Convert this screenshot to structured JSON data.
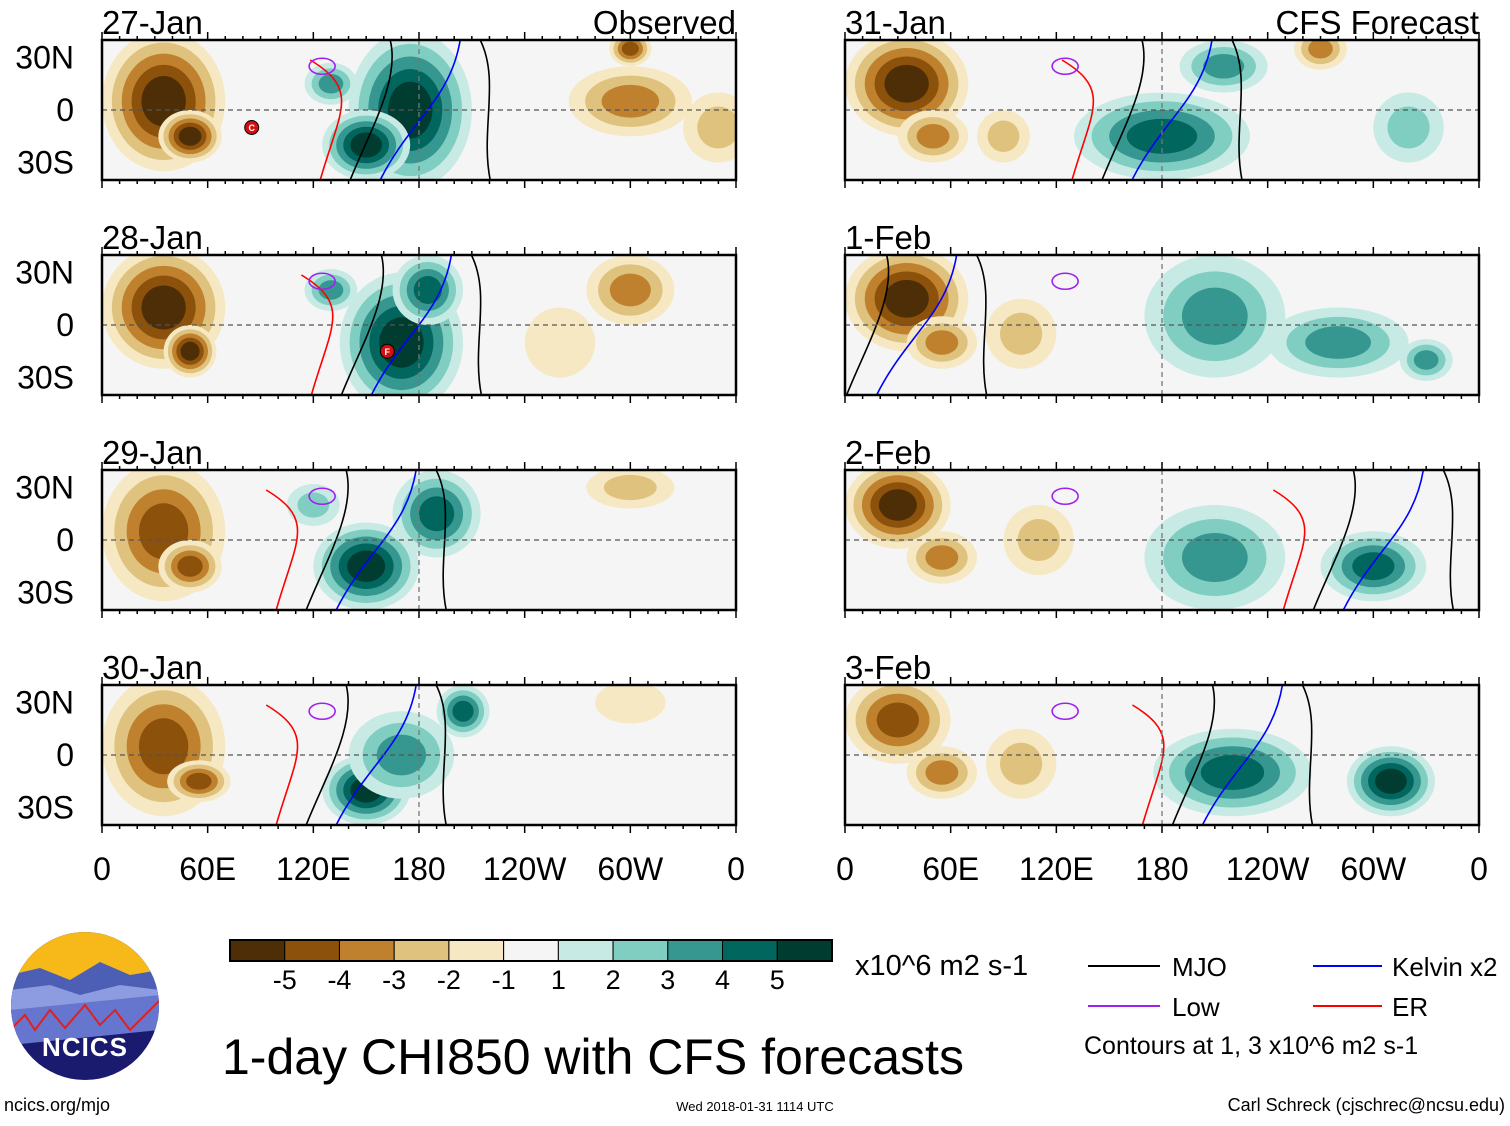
{
  "panels": [
    {
      "date": "27-Jan",
      "tag": "Observed",
      "col": 0,
      "row": 0,
      "type": "observed"
    },
    {
      "date": "28-Jan",
      "tag": "",
      "col": 0,
      "row": 1,
      "type": "observed"
    },
    {
      "date": "29-Jan",
      "tag": "",
      "col": 0,
      "row": 2,
      "type": "observed"
    },
    {
      "date": "30-Jan",
      "tag": "",
      "col": 0,
      "row": 3,
      "type": "observed"
    },
    {
      "date": "31-Jan",
      "tag": "CFS Forecast",
      "col": 1,
      "row": 0,
      "type": "forecast"
    },
    {
      "date": "1-Feb",
      "tag": "",
      "col": 1,
      "row": 1,
      "type": "forecast"
    },
    {
      "date": "2-Feb",
      "tag": "",
      "col": 1,
      "row": 2,
      "type": "forecast"
    },
    {
      "date": "3-Feb",
      "tag": "",
      "col": 1,
      "row": 3,
      "type": "forecast"
    }
  ],
  "lat_labels": [
    "30N",
    "0",
    "30S"
  ],
  "lon_labels": [
    "0",
    "60E",
    "120E",
    "180",
    "120W",
    "60W",
    "0"
  ],
  "colorbar": {
    "colors": [
      "#4d2e06",
      "#8c510a",
      "#bf812d",
      "#dfc27d",
      "#f6e8c3",
      "#f5f5f5",
      "#c7eae5",
      "#80cdc1",
      "#35978f",
      "#01665e",
      "#003c30"
    ],
    "labels": [
      "-5",
      "-4",
      "-3",
      "-2",
      "-1",
      "1",
      "2",
      "3",
      "4",
      "5"
    ],
    "units": "x10^6 m2 s-1"
  },
  "legend": {
    "items": [
      {
        "label": "MJO",
        "color": "#000000"
      },
      {
        "label": "Kelvin x2",
        "color": "#0000ff"
      },
      {
        "label": "Low",
        "color": "#a020f0"
      },
      {
        "label": "ER",
        "color": "#ff0000"
      }
    ],
    "note": "Contours at 1, 3 x10^6 m2 s-1"
  },
  "title": "1-day CHI850 with CFS forecasts",
  "logo": {
    "text": "NCICS"
  },
  "footer": {
    "url": "ncics.org/mjo",
    "timestamp": "Wed 2018-01-31 1114 UTC",
    "author": "Carl Schreck (cjschrec@ncsu.edu)"
  },
  "storm_markers": [
    "C",
    "F"
  ]
}
